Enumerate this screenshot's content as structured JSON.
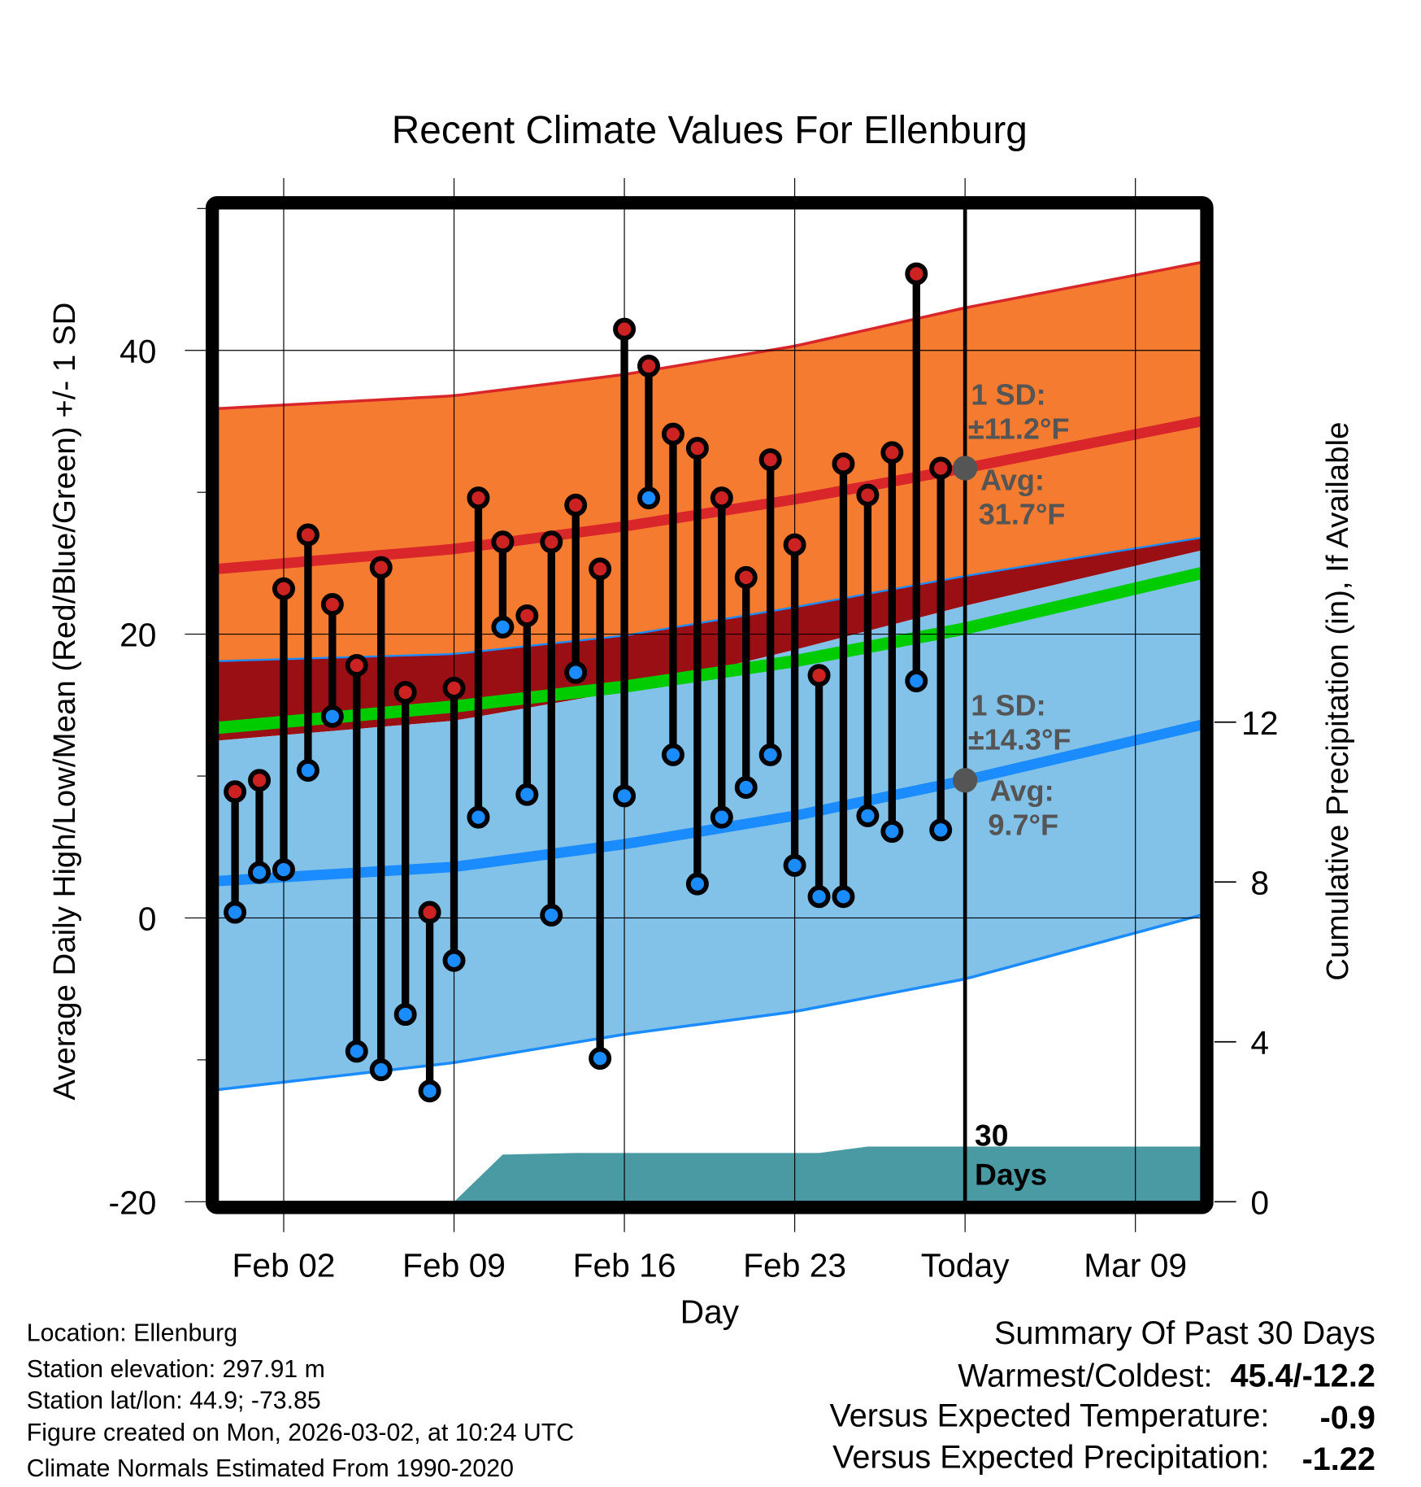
{
  "chart_data": {
    "type": "line",
    "title": "Recent Climate Values For Ellenburg",
    "xlabel": "Day",
    "ylabel": "Average Daily High/Low/Mean (Red/Blue/Green) +/- 1 SD",
    "ylabel_right": "Cumulative Precipitation (in), If Available",
    "x_units": "days since Feb 01",
    "xlim": [
      -1.7,
      38.7
    ],
    "ylim": [
      -20,
      50
    ],
    "ylim_right": [
      0,
      24.85
    ],
    "grid": true,
    "x_ticks": [
      {
        "x": 1,
        "label": "Feb 02"
      },
      {
        "x": 8,
        "label": "Feb 09"
      },
      {
        "x": 15,
        "label": "Feb 16"
      },
      {
        "x": 22,
        "label": "Feb 23"
      },
      {
        "x": 29,
        "label": "Today"
      },
      {
        "x": 36,
        "label": "Mar 09"
      }
    ],
    "y_ticks": [
      {
        "v": -20,
        "label": "-20"
      },
      {
        "v": 0,
        "label": "0"
      },
      {
        "v": 20,
        "label": "20"
      },
      {
        "v": 40,
        "label": "40"
      }
    ],
    "y_minor_ticks": [
      -10,
      10,
      30,
      50
    ],
    "y_right_ticks": [
      {
        "v": 0,
        "label": "0"
      },
      {
        "v": 4,
        "label": "4"
      },
      {
        "v": 8,
        "label": "8"
      },
      {
        "v": 12,
        "label": "12"
      }
    ],
    "observed": {
      "days": [
        -1,
        0,
        1,
        2,
        3,
        4,
        5,
        6,
        7,
        8,
        9,
        10,
        11,
        12,
        13,
        14,
        15,
        16,
        17,
        18,
        19,
        20,
        21,
        22,
        23,
        24,
        25,
        26,
        27,
        28
      ],
      "highs": [
        8.9,
        9.7,
        23.2,
        27.0,
        22.1,
        17.8,
        24.7,
        15.9,
        0.4,
        16.2,
        29.6,
        26.5,
        21.3,
        26.5,
        29.1,
        24.6,
        41.5,
        38.9,
        34.1,
        33.1,
        29.6,
        24.0,
        32.3,
        26.3,
        17.1,
        32.0,
        29.8,
        32.8,
        45.4,
        31.7
      ],
      "lows": [
        0.4,
        3.2,
        3.4,
        10.4,
        14.2,
        -9.4,
        -10.7,
        -6.8,
        -12.2,
        -3.0,
        7.1,
        20.5,
        8.7,
        0.2,
        17.3,
        -9.9,
        8.6,
        29.6,
        11.5,
        2.4,
        7.1,
        9.2,
        11.5,
        3.7,
        1.5,
        1.5,
        7.2,
        6.1,
        16.7,
        6.2
      ]
    },
    "normals": {
      "days": [
        -1.7,
        8,
        15,
        22,
        29,
        38.7
      ],
      "high_upper": [
        35.9,
        36.8,
        38.3,
        40.3,
        43.0,
        46.2
      ],
      "high_mean": [
        24.6,
        26.0,
        27.6,
        29.5,
        31.7,
        35.0
      ],
      "high_lower": [
        18.1,
        18.6,
        19.9,
        21.9,
        24.1,
        26.8
      ],
      "mean": [
        13.4,
        14.9,
        16.3,
        18.1,
        20.4,
        24.3
      ],
      "low_upper": [
        12.5,
        13.9,
        16.0,
        18.9,
        22.0,
        25.9
      ],
      "low_mean": [
        2.6,
        3.6,
        5.2,
        7.2,
        9.7,
        13.6
      ],
      "low_lower": [
        -12.1,
        -10.2,
        -8.2,
        -6.6,
        -4.3,
        0.2
      ]
    },
    "precipitation": {
      "days": [
        8,
        10,
        13,
        23,
        25,
        38.7
      ],
      "values": [
        0,
        1.18,
        1.22,
        1.22,
        1.38,
        1.38
      ]
    },
    "annotations": {
      "high_sd": "1 SD:",
      "high_sd_val": "±11.2°F",
      "high_avg": "Avg:",
      "high_avg_val": "31.7°F",
      "low_sd": "1 SD:",
      "low_sd_val": "±14.3°F",
      "low_avg": "Avg:",
      "low_avg_val": "9.7°F",
      "window_num": "30",
      "window_label": "Days"
    },
    "colors": {
      "high_band": "#f47b2f",
      "overlap": "#9a0f14",
      "low_band": "#82c1e8",
      "high_line": "#d9262a",
      "low_line": "#1a8cff",
      "mean_line": "#00cc00",
      "precip": "#4a9aa3",
      "high_dot": "#cc2222",
      "low_dot": "#1a8cff"
    }
  },
  "footer": {
    "location": "Location: Ellenburg",
    "elevation": "Station elevation: 297.91 m",
    "latlon": "Station lat/lon: 44.9; -73.85",
    "created": "Figure created on Mon, 2026-03-02, at 10:24 UTC",
    "normals": "Climate Normals Estimated From 1990-2020"
  },
  "summary": {
    "title": "Summary Of Past 30 Days",
    "warm_cold_label": "Warmest/Coldest:",
    "warm_cold_value": "45.4/-12.2",
    "temp_label": "Versus Expected Temperature:",
    "temp_value": "-0.9",
    "precip_label": "Versus Expected Precipitation:",
    "precip_value": "-1.22"
  }
}
